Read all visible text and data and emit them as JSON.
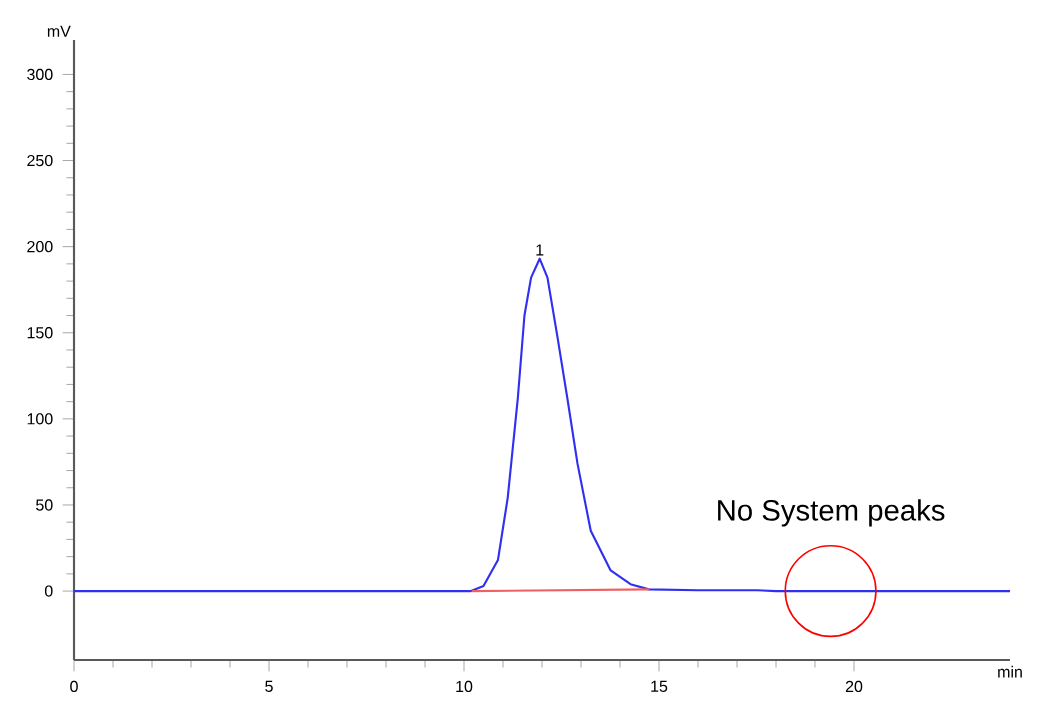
{
  "chart_data": {
    "type": "line",
    "xlabel": "min",
    "ylabel": "mV",
    "xlim": [
      0,
      24
    ],
    "ylim": [
      -40,
      320
    ],
    "xticks": [
      0,
      5,
      10,
      15,
      20
    ],
    "yticks": [
      0,
      50,
      100,
      150,
      200,
      250,
      300
    ],
    "series": [
      {
        "color": "#3030f0",
        "x": [
          0,
          10.18,
          10.5,
          10.87,
          11.12,
          11.38,
          11.55,
          11.72,
          11.94,
          12.14,
          12.4,
          12.65,
          12.91,
          13.25,
          13.76,
          14.27,
          14.74,
          16,
          17.5,
          18,
          24
        ],
        "values": [
          0,
          0,
          3,
          18,
          54,
          112,
          160,
          182,
          193,
          182,
          147,
          112,
          74,
          35,
          12,
          4,
          1,
          0.5,
          0.5,
          0,
          0
        ]
      },
      {
        "color": "#f06060",
        "x": [
          10.2,
          14.75
        ],
        "values": [
          0,
          1
        ]
      }
    ],
    "annotations": [
      {
        "text": "1",
        "x": 11.94,
        "y": 193
      },
      {
        "text": "No System peaks",
        "x": 19.4,
        "y": 0
      }
    ]
  }
}
